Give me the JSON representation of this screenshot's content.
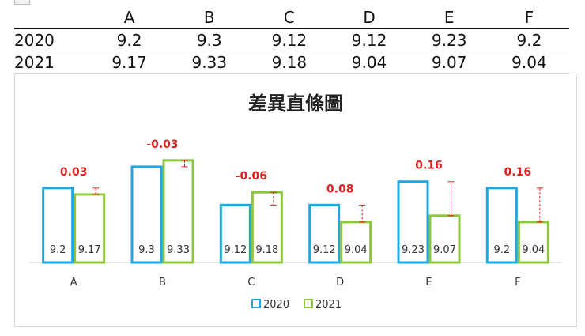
{
  "table": {
    "columns": [
      "",
      "A",
      "B",
      "C",
      "D",
      "E",
      "F"
    ],
    "rows": [
      {
        "label": "2020",
        "values": [
          "9.2",
          "9.3",
          "9.12",
          "9.12",
          "9.23",
          "9.2"
        ]
      },
      {
        "label": "2021",
        "values": [
          "9.17",
          "9.33",
          "9.18",
          "9.04",
          "9.07",
          "9.04"
        ]
      }
    ]
  },
  "chart_data": {
    "type": "bar",
    "title": "差異直條圖",
    "categories": [
      "A",
      "B",
      "C",
      "D",
      "E",
      "F"
    ],
    "series": [
      {
        "name": "2020",
        "values": [
          9.2,
          9.3,
          9.12,
          9.12,
          9.23,
          9.2
        ],
        "color": "#1ea7e1"
      },
      {
        "name": "2021",
        "values": [
          9.17,
          9.33,
          9.18,
          9.04,
          9.07,
          9.04
        ],
        "color": "#8cc63f"
      }
    ],
    "differences": [
      "0.03",
      "-0.03",
      "-0.06",
      "0.08",
      "0.16",
      "0.16"
    ],
    "difference_color": "#e02020",
    "ylim": [
      8.85,
      9.4
    ],
    "legend_position": "bottom",
    "grid": false
  }
}
